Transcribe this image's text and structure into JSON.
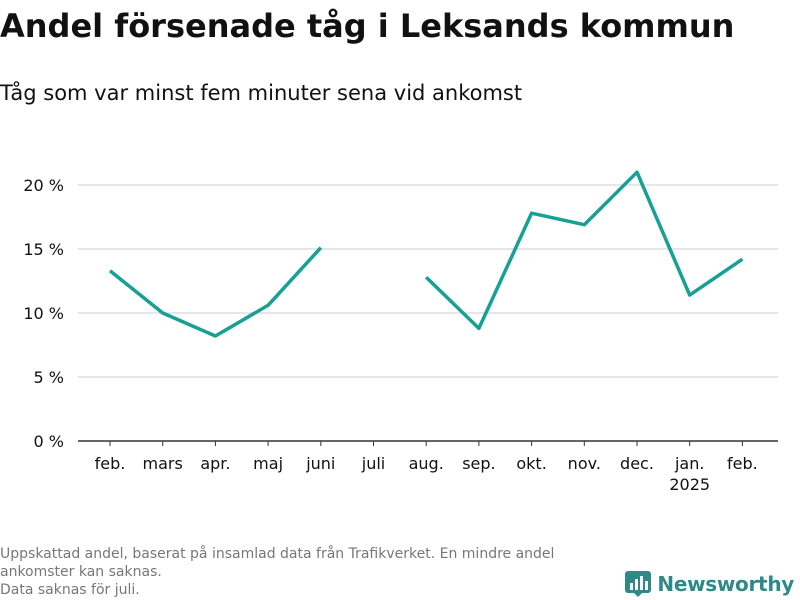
{
  "title": "Andel försenade tåg i Leksands kommun",
  "subtitle": "Tåg som var minst fem minuter sena vid ankomst",
  "footnote": {
    "line1": "Uppskattad andel, baserat på insamlad data från Trafikverket. En mindre andel ankomster kan saknas.",
    "line2": "Data saknas för juli."
  },
  "brand": {
    "name": "Newsworthy",
    "icon": "bar-chart-icon"
  },
  "colors": {
    "line": "#17a095",
    "grid": "#dddddd",
    "axis": "#333333",
    "text": "#111111",
    "muted": "#777777",
    "brand": "#2e8a86"
  },
  "chart_data": {
    "type": "line",
    "title": "Andel försenade tåg i Leksands kommun",
    "subtitle": "Tåg som var minst fem minuter sena vid ankomst",
    "xlabel": "",
    "ylabel": "",
    "categories": [
      "feb.",
      "mars",
      "apr.",
      "maj",
      "juni",
      "juli",
      "aug.",
      "sep.",
      "okt.",
      "nov.",
      "dec.",
      "jan.",
      "feb."
    ],
    "category_sublabels": [
      "",
      "",
      "",
      "",
      "",
      "",
      "",
      "",
      "",
      "",
      "",
      "2025",
      ""
    ],
    "values": [
      13.3,
      10.0,
      8.2,
      10.6,
      15.1,
      null,
      12.8,
      8.8,
      17.8,
      16.9,
      21.0,
      11.4,
      14.2
    ],
    "yticks": [
      0,
      5,
      10,
      15,
      20
    ],
    "ytick_labels": [
      "0 %",
      "5 %",
      "10 %",
      "15 %",
      "20 %"
    ],
    "ylim": [
      0,
      22
    ],
    "grid": true,
    "legend": "none"
  }
}
